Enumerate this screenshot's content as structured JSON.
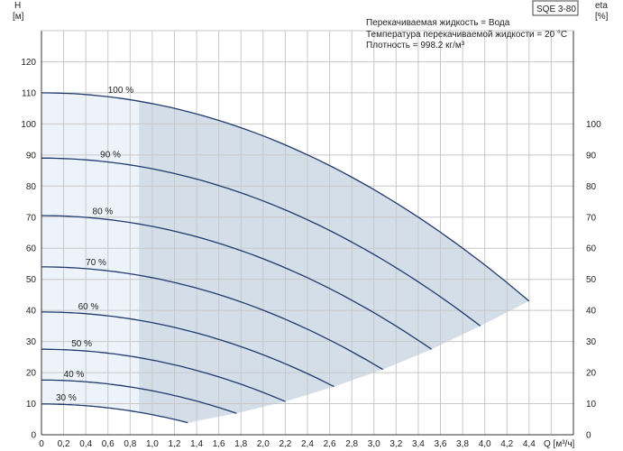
{
  "header": {
    "model": "SQE 3-80",
    "info_lines": [
      "Перекачиваемая жидкость = Вода",
      "Температура перекачиваемой жидкости = 20 °C",
      "Плотность = 998.2 кг/м³"
    ]
  },
  "chart_data": {
    "type": "line",
    "ylabel_left": [
      "H",
      "[м]"
    ],
    "ylabel_right": [
      "eta",
      "[%]"
    ],
    "xlabel": "Q [м³/ч]",
    "xlim": [
      0,
      4.8
    ],
    "ylim": [
      0,
      130
    ],
    "x_ticks": [
      "0",
      "0,2",
      "0,4",
      "0,6",
      "0,8",
      "1,0",
      "1,2",
      "1,4",
      "1,6",
      "1,8",
      "2,0",
      "2,2",
      "2,4",
      "2,6",
      "2,8",
      "3,0",
      "3,2",
      "3,4",
      "3,6",
      "3,8",
      "4,0",
      "4,2",
      "4,4"
    ],
    "y_ticks_left": [
      "0",
      "10",
      "20",
      "30",
      "40",
      "50",
      "60",
      "70",
      "80",
      "90",
      "100",
      "110",
      "120"
    ],
    "y_ticks_right": [
      "0",
      "10",
      "20",
      "30",
      "40",
      "50",
      "60",
      "70",
      "80",
      "90",
      "100"
    ],
    "grid": true,
    "light_region_x_max": 0.88,
    "series": [
      {
        "name": "100 %",
        "h0": 110,
        "qmax": 4.4,
        "hmin": 43
      },
      {
        "name": "90 %",
        "h0": 89,
        "qmax": 3.96,
        "hmin": 35
      },
      {
        "name": "80 %",
        "h0": 70.5,
        "qmax": 3.52,
        "hmin": 27.5
      },
      {
        "name": "70 %",
        "h0": 54,
        "qmax": 3.08,
        "hmin": 21
      },
      {
        "name": "60 %",
        "h0": 39.5,
        "qmax": 2.64,
        "hmin": 15.5
      },
      {
        "name": "50 %",
        "h0": 27.5,
        "qmax": 2.2,
        "hmin": 10.7
      },
      {
        "name": "40 %",
        "h0": 17.6,
        "qmax": 1.76,
        "hmin": 6.9
      },
      {
        "name": "30 %",
        "h0": 9.9,
        "qmax": 1.32,
        "hmin": 3.9
      }
    ]
  },
  "colors": {
    "curve": "#1f3a6e",
    "fill": "#d3dee9",
    "fill_light": "#edf3fb",
    "grid": "#c8c8c8",
    "axis": "#333333"
  }
}
